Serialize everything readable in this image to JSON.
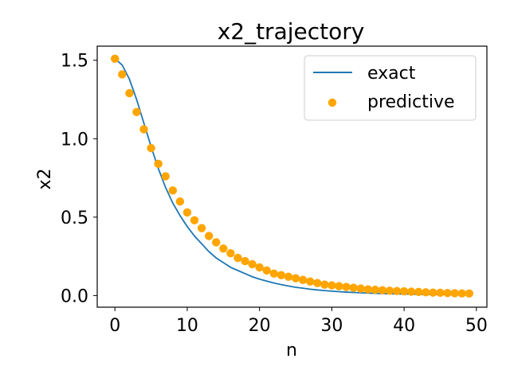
{
  "chart_data": {
    "type": "line",
    "title": "x2_trajectory",
    "xlabel": "n",
    "ylabel": "x2",
    "xlim": [
      -2.45,
      51.45
    ],
    "ylim": [
      -0.074,
      1.59
    ],
    "x_ticks": [
      0,
      10,
      20,
      30,
      40,
      50
    ],
    "x_tick_labels": [
      "0",
      "10",
      "20",
      "30",
      "40",
      "50"
    ],
    "y_ticks": [
      0.0,
      0.5,
      1.0,
      1.5
    ],
    "y_tick_labels": [
      "0.0",
      "0.5",
      "1.0",
      "1.5"
    ],
    "grid": false,
    "legend_position": "top-right",
    "series": [
      {
        "name": "exact",
        "type": "line",
        "color": "#1f77b4",
        "x": [
          0,
          1,
          2,
          3,
          4,
          5,
          6,
          7,
          8,
          9,
          10,
          11,
          12,
          13,
          14,
          15,
          16,
          17,
          18,
          19,
          20,
          21,
          22,
          23,
          24,
          25,
          26,
          27,
          28,
          29,
          30,
          31,
          32,
          33,
          34,
          35,
          36,
          37,
          38,
          39,
          40,
          41,
          42,
          43,
          44,
          45,
          46,
          47,
          48,
          49
        ],
        "y": [
          1.51,
          1.47,
          1.38,
          1.25,
          1.1,
          0.95,
          0.81,
          0.69,
          0.59,
          0.51,
          0.44,
          0.38,
          0.33,
          0.28,
          0.24,
          0.21,
          0.18,
          0.16,
          0.14,
          0.12,
          0.105,
          0.092,
          0.08,
          0.07,
          0.061,
          0.053,
          0.047,
          0.041,
          0.036,
          0.032,
          0.028,
          0.025,
          0.022,
          0.02,
          0.018,
          0.016,
          0.014,
          0.013,
          0.012,
          0.011,
          0.01,
          0.009,
          0.008,
          0.008,
          0.007,
          0.007,
          0.006,
          0.006,
          0.006,
          0.005
        ]
      },
      {
        "name": "predictive",
        "type": "scatter",
        "color": "#ffa500",
        "x": [
          0,
          1,
          2,
          3,
          4,
          5,
          6,
          7,
          8,
          9,
          10,
          11,
          12,
          13,
          14,
          15,
          16,
          17,
          18,
          19,
          20,
          21,
          22,
          23,
          24,
          25,
          26,
          27,
          28,
          29,
          30,
          31,
          32,
          33,
          34,
          35,
          36,
          37,
          38,
          39,
          40,
          41,
          42,
          43,
          44,
          45,
          46,
          47,
          48,
          49
        ],
        "y": [
          1.51,
          1.41,
          1.29,
          1.17,
          1.06,
          0.94,
          0.84,
          0.76,
          0.67,
          0.6,
          0.53,
          0.48,
          0.43,
          0.38,
          0.34,
          0.3,
          0.27,
          0.24,
          0.22,
          0.2,
          0.18,
          0.16,
          0.14,
          0.13,
          0.12,
          0.11,
          0.1,
          0.09,
          0.08,
          0.07,
          0.065,
          0.06,
          0.055,
          0.05,
          0.045,
          0.04,
          0.037,
          0.034,
          0.031,
          0.029,
          0.027,
          0.025,
          0.023,
          0.021,
          0.019,
          0.018,
          0.016,
          0.015,
          0.014,
          0.013
        ]
      }
    ]
  }
}
